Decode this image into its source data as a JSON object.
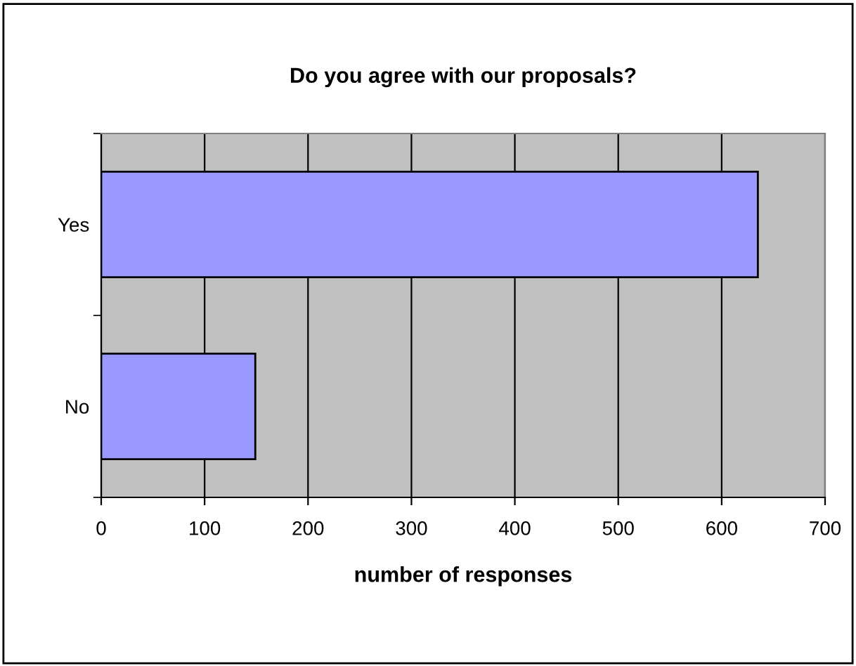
{
  "chart_data": {
    "type": "bar",
    "orientation": "horizontal",
    "title": "Do you agree with our proposals?",
    "xlabel": "number of responses",
    "categories": [
      "Yes",
      "No"
    ],
    "values": [
      635,
      149
    ],
    "color": "#9999ff",
    "xlim": [
      0,
      700
    ],
    "xticks": [
      0,
      100,
      200,
      300,
      400,
      500,
      600,
      700
    ],
    "grid": "x",
    "legend": false
  }
}
